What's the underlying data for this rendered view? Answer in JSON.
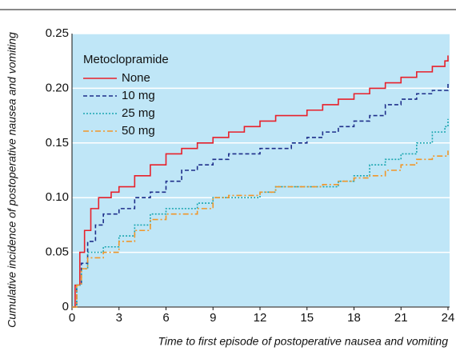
{
  "chart_data": {
    "type": "step",
    "xlabel": "Time to first episode of postoperative nausea and vomiting",
    "ylabel": "Cumulative incidence of postoperative nausea and vomiting",
    "legend_title": "Metoclopramide",
    "legend": "upper left",
    "grid": true,
    "xlim": [
      0,
      24
    ],
    "xticks": [
      0,
      3,
      6,
      9,
      12,
      15,
      18,
      21,
      24
    ],
    "ylim": [
      0,
      0.25
    ],
    "yticks": [
      0,
      0.05,
      {
        "value": 0.1,
        "label": "0.10"
      },
      0.15,
      {
        "value": 0.2,
        "label": "0.20"
      },
      0.25
    ],
    "series": [
      {
        "name": "None",
        "color": "#e8202a",
        "dash": "none",
        "x": [
          0,
          0.2,
          0.5,
          0.8,
          1.2,
          1.7,
          2.5,
          3,
          4,
          5,
          6,
          7,
          8,
          9,
          10,
          11,
          12,
          13,
          15,
          16,
          17,
          18,
          19,
          20,
          21,
          22,
          23,
          23.8,
          24
        ],
        "values": [
          0,
          0.02,
          0.05,
          0.07,
          0.09,
          0.1,
          0.105,
          0.11,
          0.12,
          0.13,
          0.14,
          0.145,
          0.15,
          0.155,
          0.16,
          0.165,
          0.17,
          0.175,
          0.18,
          0.185,
          0.19,
          0.195,
          0.2,
          0.205,
          0.21,
          0.215,
          0.22,
          0.225,
          0.23
        ]
      },
      {
        "name": "10 mg",
        "color": "#1f2f8a",
        "dash": "5 3",
        "x": [
          0,
          0.3,
          0.6,
          1,
          1.5,
          2,
          3,
          4,
          5,
          6,
          7,
          8,
          9,
          10,
          12,
          14,
          15,
          16,
          17,
          18,
          19,
          20,
          21,
          22,
          23,
          24
        ],
        "values": [
          0,
          0.02,
          0.04,
          0.06,
          0.075,
          0.085,
          0.09,
          0.1,
          0.105,
          0.115,
          0.125,
          0.13,
          0.135,
          0.14,
          0.145,
          0.15,
          0.155,
          0.16,
          0.165,
          0.17,
          0.175,
          0.185,
          0.19,
          0.195,
          0.198,
          0.205
        ]
      },
      {
        "name": "25 mg",
        "color": "#1aa6b0",
        "dash": "2 2",
        "x": [
          0,
          0.3,
          0.6,
          1,
          2,
          3,
          4,
          5,
          6,
          8,
          9,
          10,
          12,
          13,
          16,
          17,
          18,
          19,
          20,
          21,
          22,
          23,
          23.8,
          24
        ],
        "values": [
          0,
          0.02,
          0.035,
          0.05,
          0.055,
          0.065,
          0.075,
          0.085,
          0.09,
          0.095,
          0.1,
          0.1,
          0.105,
          0.11,
          0.11,
          0.115,
          0.12,
          0.13,
          0.135,
          0.14,
          0.15,
          0.16,
          0.165,
          0.172
        ]
      },
      {
        "name": "50 mg",
        "color": "#f0962a",
        "dash": "7 3 2 3",
        "x": [
          0,
          0.3,
          0.6,
          1,
          2,
          3,
          4,
          5,
          6,
          8,
          9,
          10,
          12,
          13,
          16,
          17,
          18,
          19,
          20,
          21,
          22,
          23,
          24
        ],
        "values": [
          0,
          0.02,
          0.035,
          0.045,
          0.05,
          0.06,
          0.07,
          0.08,
          0.085,
          0.09,
          0.1,
          0.102,
          0.105,
          0.11,
          0.112,
          0.115,
          0.118,
          0.12,
          0.125,
          0.13,
          0.135,
          0.138,
          0.143
        ]
      }
    ]
  }
}
